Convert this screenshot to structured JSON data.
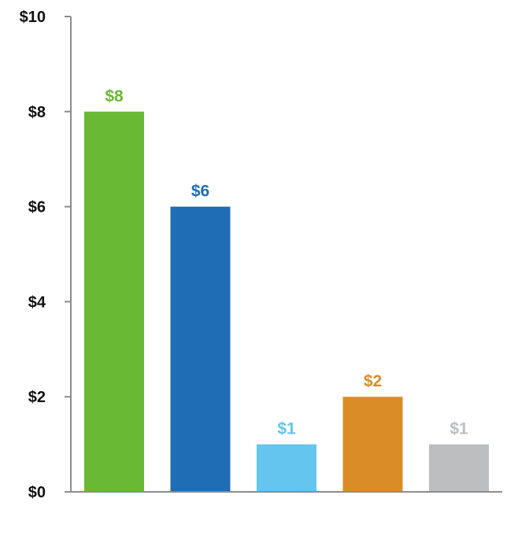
{
  "chart_data": {
    "type": "bar",
    "categories": [
      "",
      "",
      "",
      "",
      ""
    ],
    "values": [
      8,
      6,
      1,
      2,
      1
    ],
    "data_labels": [
      "$8",
      "$6",
      "$1",
      "$2",
      "$1"
    ],
    "colors": [
      "#6ab935",
      "#1f6db5",
      "#64c5ef",
      "#da8d26",
      "#bdbec0"
    ],
    "title": "",
    "xlabel": "",
    "ylabel": "",
    "ylim": [
      0,
      10
    ],
    "yticks": [
      0,
      2,
      4,
      6,
      8,
      10
    ],
    "ytick_labels": [
      "$0",
      "$2",
      "$4",
      "$6",
      "$8",
      "$10"
    ],
    "grid": false,
    "axis_color": "#8c8c8c"
  }
}
